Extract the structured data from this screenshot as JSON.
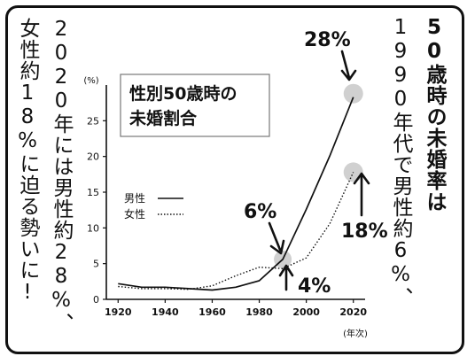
{
  "captions": {
    "right_1": "50歳時の未婚率は",
    "right_2": "1990年代で男性約6%、",
    "left_1": "2020年には男性約28%、",
    "left_2": "女性約18%に迫る勢いに!"
  },
  "annotations": {
    "male_2020": "28%",
    "female_2020": "18%",
    "male_1990": "6%",
    "female_1990": "4%"
  },
  "chart_data": {
    "type": "line",
    "title": "性別50歳時の未婚割合",
    "ylabel_unit": "(%)",
    "xlabel_unit": "(年次)",
    "xlim": [
      1915,
      2025
    ],
    "ylim": [
      0,
      30
    ],
    "x_ticks": [
      1920,
      1940,
      1960,
      1980,
      2000,
      2020
    ],
    "y_ticks": [
      0,
      5,
      10,
      15,
      20,
      25
    ],
    "grid": false,
    "legend_position": "upper-left",
    "series": [
      {
        "name": "男性",
        "style": "solid",
        "points": [
          [
            1920,
            2.2
          ],
          [
            1930,
            1.7
          ],
          [
            1940,
            1.7
          ],
          [
            1950,
            1.5
          ],
          [
            1960,
            1.3
          ],
          [
            1970,
            1.7
          ],
          [
            1980,
            2.6
          ],
          [
            1990,
            5.6
          ],
          [
            2000,
            12.6
          ],
          [
            2010,
            20.1
          ],
          [
            2020,
            28.3
          ]
        ]
      },
      {
        "name": "女性",
        "style": "dotted",
        "points": [
          [
            1920,
            1.8
          ],
          [
            1930,
            1.5
          ],
          [
            1940,
            1.5
          ],
          [
            1950,
            1.4
          ],
          [
            1960,
            1.9
          ],
          [
            1970,
            3.3
          ],
          [
            1980,
            4.5
          ],
          [
            1990,
            4.3
          ],
          [
            2000,
            5.8
          ],
          [
            2010,
            10.6
          ],
          [
            2020,
            17.8
          ]
        ]
      }
    ]
  }
}
